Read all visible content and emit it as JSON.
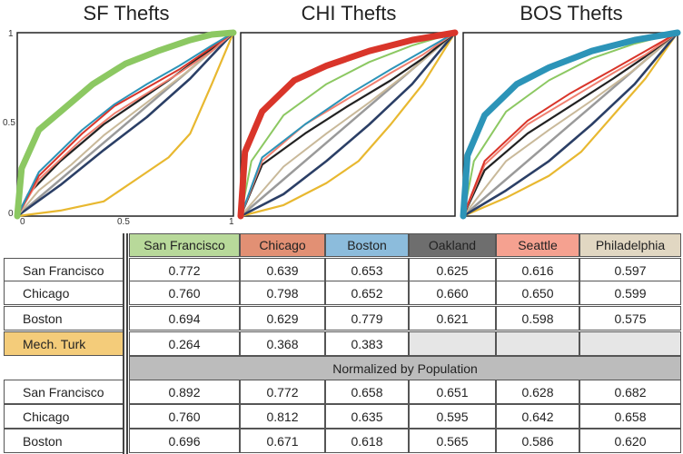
{
  "colors": {
    "San Francisco": "#8cc862",
    "Chicago": "#d9352a",
    "Boston": "#2c94b8",
    "Oakland": "#222222",
    "Seattle": "#f08070",
    "Philadelphia": "#c9b99a",
    "Diagonal": "#9a9a9a",
    "Navy": "#2b3f66",
    "Mech. Turk": "#e8b830"
  },
  "header_colors": {
    "San Francisco": "#b8d99a",
    "Chicago": "#e29074",
    "Boston": "#8cbcdc",
    "Oakland": "#6e6e6e",
    "Seattle": "#f5a190",
    "Philadelphia": "#e1d7c2",
    "Mech. Turk": "#f4cc7a",
    "Normalized": "#bcbcbc",
    "Empty": "#e6e6e6"
  },
  "chart_data": [
    {
      "type": "line",
      "title": "SF Thefts",
      "xlim": [
        0,
        1
      ],
      "ylim": [
        0,
        1
      ],
      "xticks": [
        "0",
        "0.5",
        "1"
      ],
      "yticks": [
        "0",
        "0.5",
        "1"
      ],
      "series": [
        {
          "name": "Diagonal",
          "x": [
            0,
            1
          ],
          "y": [
            0,
            1
          ]
        },
        {
          "name": "Mech. Turk",
          "x": [
            0,
            0.2,
            0.4,
            0.55,
            0.7,
            0.8,
            0.9,
            1
          ],
          "y": [
            0,
            0.03,
            0.08,
            0.2,
            0.32,
            0.45,
            0.72,
            1
          ]
        },
        {
          "name": "Navy",
          "x": [
            0,
            0.2,
            0.4,
            0.6,
            0.8,
            1
          ],
          "y": [
            0,
            0.17,
            0.36,
            0.54,
            0.75,
            1
          ]
        },
        {
          "name": "Philadelphia",
          "x": [
            0,
            0.1,
            0.25,
            0.4,
            0.6,
            0.8,
            1
          ],
          "y": [
            0,
            0.14,
            0.28,
            0.44,
            0.62,
            0.8,
            1
          ]
        },
        {
          "name": "Oakland",
          "x": [
            0,
            0.05,
            0.2,
            0.4,
            0.55,
            0.7,
            0.85,
            1
          ],
          "y": [
            0,
            0.12,
            0.3,
            0.5,
            0.62,
            0.74,
            0.87,
            1
          ]
        },
        {
          "name": "Seattle",
          "x": [
            0,
            0.1,
            0.3,
            0.45,
            0.6,
            0.75,
            0.9,
            1
          ],
          "y": [
            0,
            0.2,
            0.42,
            0.56,
            0.67,
            0.78,
            0.9,
            1
          ]
        },
        {
          "name": "Chicago",
          "x": [
            0,
            0.1,
            0.3,
            0.45,
            0.6,
            0.75,
            0.9,
            1
          ],
          "y": [
            0,
            0.22,
            0.45,
            0.6,
            0.7,
            0.8,
            0.92,
            1
          ]
        },
        {
          "name": "Boston",
          "x": [
            0,
            0.1,
            0.3,
            0.45,
            0.6,
            0.75,
            0.9,
            1
          ],
          "y": [
            0,
            0.24,
            0.47,
            0.61,
            0.72,
            0.82,
            0.93,
            1
          ]
        },
        {
          "name": "San Francisco",
          "x": [
            0,
            0.02,
            0.1,
            0.2,
            0.35,
            0.5,
            0.65,
            0.8,
            0.9,
            1
          ],
          "y": [
            0,
            0.26,
            0.47,
            0.57,
            0.72,
            0.83,
            0.9,
            0.96,
            0.99,
            1
          ]
        }
      ]
    },
    {
      "type": "line",
      "title": "CHI Thefts",
      "xlim": [
        0,
        1
      ],
      "ylim": [
        0,
        1
      ],
      "series": [
        {
          "name": "Diagonal",
          "x": [
            0,
            1
          ],
          "y": [
            0,
            1
          ]
        },
        {
          "name": "Mech. Turk",
          "x": [
            0,
            0.2,
            0.4,
            0.55,
            0.7,
            0.85,
            1
          ],
          "y": [
            0,
            0.06,
            0.18,
            0.3,
            0.5,
            0.72,
            1
          ]
        },
        {
          "name": "Navy",
          "x": [
            0,
            0.2,
            0.4,
            0.6,
            0.8,
            1
          ],
          "y": [
            0,
            0.12,
            0.3,
            0.5,
            0.72,
            1
          ]
        },
        {
          "name": "Philadelphia",
          "x": [
            0,
            0.2,
            0.4,
            0.6,
            0.8,
            1
          ],
          "y": [
            0,
            0.27,
            0.45,
            0.62,
            0.8,
            1
          ]
        },
        {
          "name": "Oakland",
          "x": [
            0,
            0.1,
            0.3,
            0.5,
            0.7,
            0.85,
            1
          ],
          "y": [
            0,
            0.28,
            0.45,
            0.6,
            0.74,
            0.86,
            1
          ]
        },
        {
          "name": "Seattle",
          "x": [
            0,
            0.1,
            0.3,
            0.5,
            0.7,
            0.85,
            1
          ],
          "y": [
            0,
            0.3,
            0.5,
            0.64,
            0.78,
            0.88,
            1
          ]
        },
        {
          "name": "Boston",
          "x": [
            0,
            0.1,
            0.3,
            0.5,
            0.7,
            0.85,
            1
          ],
          "y": [
            0,
            0.32,
            0.5,
            0.66,
            0.8,
            0.9,
            1
          ]
        },
        {
          "name": "San Francisco",
          "x": [
            0,
            0.05,
            0.2,
            0.4,
            0.6,
            0.8,
            1
          ],
          "y": [
            0,
            0.3,
            0.55,
            0.72,
            0.84,
            0.93,
            1
          ]
        },
        {
          "name": "Chicago",
          "x": [
            0,
            0.02,
            0.1,
            0.25,
            0.4,
            0.6,
            0.8,
            1
          ],
          "y": [
            0,
            0.35,
            0.57,
            0.74,
            0.82,
            0.9,
            0.96,
            1
          ]
        }
      ]
    },
    {
      "type": "line",
      "title": "BOS Thefts",
      "xlim": [
        0,
        1
      ],
      "ylim": [
        0,
        1
      ],
      "series": [
        {
          "name": "Diagonal",
          "x": [
            0,
            1
          ],
          "y": [
            0,
            1
          ]
        },
        {
          "name": "Mech. Turk",
          "x": [
            0,
            0.2,
            0.4,
            0.55,
            0.7,
            0.85,
            1
          ],
          "y": [
            0,
            0.1,
            0.22,
            0.35,
            0.55,
            0.75,
            1
          ]
        },
        {
          "name": "Navy",
          "x": [
            0,
            0.2,
            0.4,
            0.6,
            0.8,
            1
          ],
          "y": [
            0,
            0.14,
            0.3,
            0.5,
            0.72,
            1
          ]
        },
        {
          "name": "Philadelphia",
          "x": [
            0,
            0.2,
            0.4,
            0.6,
            0.8,
            1
          ],
          "y": [
            0,
            0.3,
            0.47,
            0.63,
            0.8,
            1
          ]
        },
        {
          "name": "Oakland",
          "x": [
            0,
            0.1,
            0.3,
            0.5,
            0.7,
            0.85,
            1
          ],
          "y": [
            0,
            0.25,
            0.45,
            0.6,
            0.75,
            0.87,
            1
          ]
        },
        {
          "name": "Seattle",
          "x": [
            0,
            0.1,
            0.3,
            0.5,
            0.7,
            0.85,
            1
          ],
          "y": [
            0,
            0.28,
            0.5,
            0.64,
            0.78,
            0.88,
            1
          ]
        },
        {
          "name": "Chicago",
          "x": [
            0,
            0.1,
            0.3,
            0.5,
            0.7,
            0.85,
            1
          ],
          "y": [
            0,
            0.3,
            0.52,
            0.67,
            0.8,
            0.9,
            1
          ]
        },
        {
          "name": "San Francisco",
          "x": [
            0,
            0.05,
            0.2,
            0.4,
            0.6,
            0.8,
            1
          ],
          "y": [
            0,
            0.3,
            0.57,
            0.74,
            0.86,
            0.94,
            1
          ]
        },
        {
          "name": "Boston",
          "x": [
            0,
            0.02,
            0.1,
            0.25,
            0.4,
            0.6,
            0.8,
            1
          ],
          "y": [
            0,
            0.33,
            0.55,
            0.72,
            0.81,
            0.9,
            0.96,
            1
          ]
        }
      ]
    },
    {
      "type": "table",
      "columns": [
        "San Francisco",
        "Chicago",
        "Boston",
        "Oakland",
        "Seattle",
        "Philadelphia"
      ],
      "rows": [
        {
          "label": "San Francisco",
          "values": [
            "0.772",
            "0.639",
            "0.653",
            "0.625",
            "0.616",
            "0.597"
          ]
        },
        {
          "label": "Chicago",
          "values": [
            "0.760",
            "0.798",
            "0.652",
            "0.660",
            "0.650",
            "0.599"
          ]
        },
        {
          "label": "Boston",
          "values": [
            "0.694",
            "0.629",
            "0.779",
            "0.621",
            "0.598",
            "0.575"
          ]
        },
        {
          "label": "Mech. Turk",
          "values": [
            "0.264",
            "0.368",
            "0.383",
            "",
            "",
            ""
          ]
        }
      ],
      "section_label": "Normalized by Population",
      "normalized_rows": [
        {
          "label": "San Francisco",
          "values": [
            "0.892",
            "0.772",
            "0.658",
            "0.651",
            "0.628",
            "0.682"
          ]
        },
        {
          "label": "Chicago",
          "values": [
            "0.760",
            "0.812",
            "0.635",
            "0.595",
            "0.642",
            "0.658"
          ]
        },
        {
          "label": "Boston",
          "values": [
            "0.696",
            "0.671",
            "0.618",
            "0.565",
            "0.586",
            "0.620"
          ]
        }
      ]
    }
  ]
}
